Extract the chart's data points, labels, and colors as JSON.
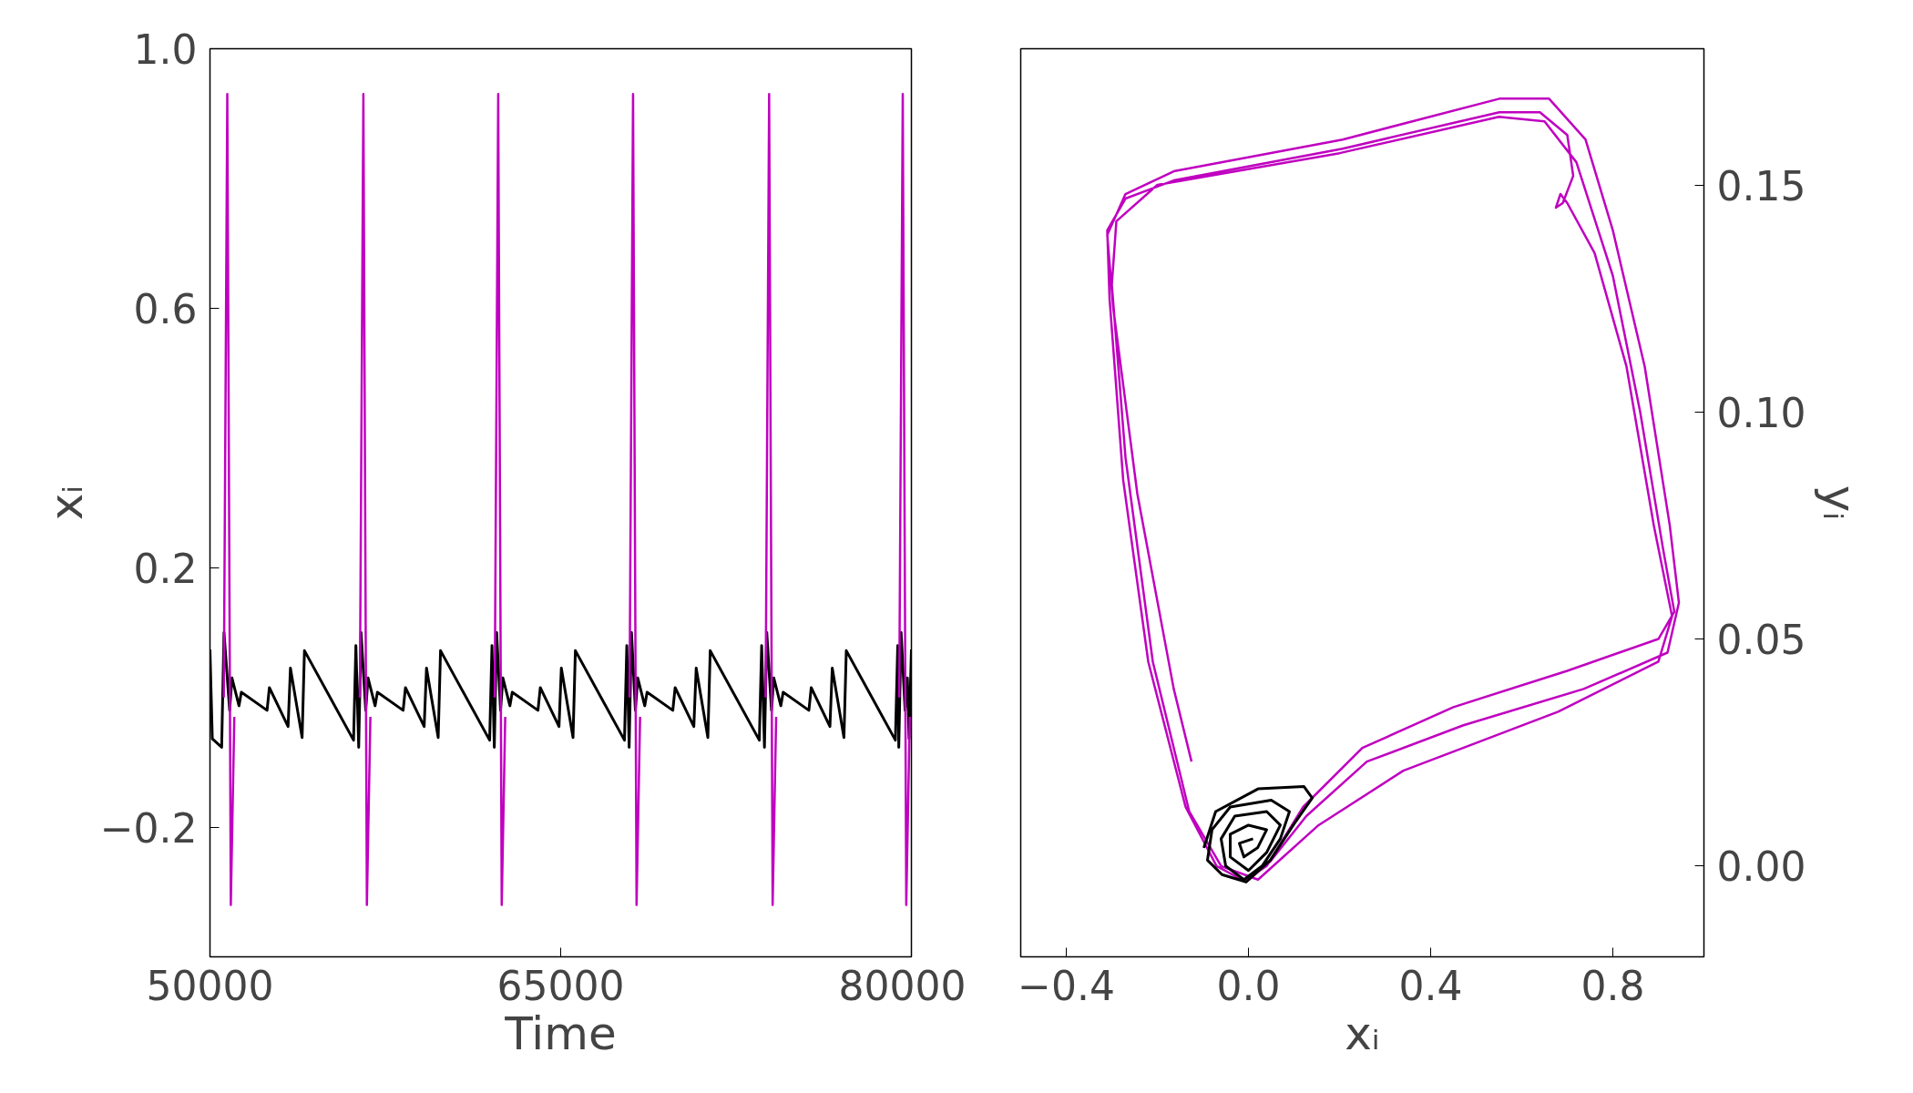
{
  "chart_data": [
    {
      "type": "line",
      "xlabel": "Time",
      "ylabel": "xᵢ",
      "xlim": [
        50000,
        80000
      ],
      "ylim": [
        -0.4,
        1.0
      ],
      "xticks": [
        50000,
        65000,
        80000
      ],
      "yticks": [
        {
          "value": -0.2,
          "label": "−0.2"
        },
        {
          "value": 0.2,
          "label": "0.2"
        },
        {
          "value": 0.6,
          "label": "0.6"
        },
        {
          "value": 1.0,
          "label": "1.0"
        }
      ],
      "grid": false,
      "marker": "none",
      "line_style": "solid",
      "series": [
        {
          "color": "#000000",
          "x": [
            50000,
            50100,
            50500,
            50600,
            50841,
            50941,
            51241,
            51341,
            52441,
            52541,
            53341,
            53441,
            53941,
            54041,
            56141,
            56241,
            56361,
            56461,
            56661,
            56761,
            57061,
            57161,
            58261,
            58361,
            59161,
            59261,
            59761,
            59861,
            61961,
            62061,
            62161,
            62261,
            62428,
            62528,
            62828,
            62928,
            64028,
            64128,
            64928,
            65028,
            65528,
            65628,
            67728,
            67828,
            67928,
            68028,
            68195,
            68295,
            68595,
            68695,
            69795,
            69895,
            70695,
            70795,
            71295,
            71395,
            73495,
            73595,
            73715,
            73815,
            74015,
            74115,
            74415,
            74515,
            75615,
            75715,
            76515,
            76615,
            77115,
            77215,
            79315,
            79415,
            79460,
            79560,
            79730,
            79830,
            79900,
            80000
          ],
          "values": [
            0.074,
            -0.064,
            -0.077,
            0.1,
            -0.02,
            0.03,
            -0.013,
            0.008,
            -0.02,
            0.015,
            -0.045,
            0.045,
            -0.062,
            0.072,
            -0.066,
            0.08,
            -0.077,
            0.1,
            -0.02,
            0.03,
            -0.013,
            0.008,
            -0.02,
            0.015,
            -0.045,
            0.045,
            -0.062,
            0.072,
            -0.066,
            0.08,
            -0.077,
            0.1,
            -0.02,
            0.03,
            -0.013,
            0.008,
            -0.02,
            0.015,
            -0.045,
            0.045,
            -0.062,
            0.072,
            -0.066,
            0.08,
            -0.077,
            0.1,
            -0.02,
            0.03,
            -0.013,
            0.008,
            -0.02,
            0.015,
            -0.045,
            0.045,
            -0.062,
            0.072,
            -0.066,
            0.08,
            -0.077,
            0.1,
            -0.02,
            0.03,
            -0.013,
            0.008,
            -0.02,
            0.015,
            -0.045,
            0.045,
            -0.062,
            0.072,
            -0.066,
            0.08,
            -0.077,
            0.1,
            -0.02,
            0.03,
            -0.064,
            0.074
          ]
        },
        {
          "color": "#c000c0",
          "x": [
            50591,
            50741,
            50891,
            51041,
            51042,
            56411,
            56561,
            56711,
            56861,
            56862,
            62178,
            62328,
            62478,
            62628,
            62629,
            67945,
            68095,
            68245,
            68395,
            68396,
            73765,
            73915,
            74065,
            74215,
            74216,
            79480,
            79630,
            79780,
            79930
          ],
          "values": [
            0.0,
            0.93,
            -0.32,
            -0.03,
            null,
            0.0,
            0.93,
            -0.32,
            -0.03,
            null,
            0.0,
            0.93,
            -0.32,
            -0.03,
            null,
            0.0,
            0.93,
            -0.32,
            -0.03,
            null,
            0.0,
            0.93,
            -0.32,
            -0.03,
            null,
            0.0,
            0.93,
            -0.32,
            -0.03
          ]
        }
      ]
    },
    {
      "type": "line",
      "xlabel": "xᵢ",
      "y2label": "yᵢ",
      "xlim": [
        -0.5,
        1.0
      ],
      "y2lim": [
        -0.02,
        0.18
      ],
      "xticks": [
        {
          "value": -0.4,
          "label": "−0.4"
        },
        {
          "value": 0.0,
          "label": "0.0"
        },
        {
          "value": 0.4,
          "label": "0.4"
        },
        {
          "value": 0.8,
          "label": "0.8"
        }
      ],
      "y2ticks": [
        {
          "value": 0.0,
          "label": "0.00"
        },
        {
          "value": 0.05,
          "label": "0.05"
        },
        {
          "value": 0.1,
          "label": "0.10"
        },
        {
          "value": 0.15,
          "label": "0.15"
        }
      ],
      "grid": false,
      "marker": "none",
      "line_style": "solid",
      "series": [
        {
          "color": "#c000c0",
          "axis": "y2",
          "x": [
            -0.125,
            -0.164,
            -0.244,
            -0.297,
            -0.31,
            -0.27,
            -0.164,
            0.207,
            0.551,
            0.66,
            0.74,
            0.8,
            0.87,
            0.925,
            0.945,
            0.92,
            0.736,
            0.472,
            0.26,
            0.127,
            0.048,
            -0.005,
            -0.07,
            -0.138,
            -0.22,
            -0.275,
            -0.305,
            -0.31,
            -0.27,
            -0.164,
            0.207,
            0.551,
            0.64,
            0.7,
            0.713,
            0.69,
            0.675,
            0.685,
            0.7,
            0.76,
            0.83,
            0.89,
            0.93,
            0.9,
            0.68,
            0.34,
            0.154,
            0.021,
            -0.06,
            -0.13,
            -0.21,
            -0.27,
            -0.3,
            -0.29,
            -0.2,
            0.2,
            0.55,
            0.65,
            0.72,
            0.8,
            0.86,
            0.91,
            0.935,
            0.9,
            0.7,
            0.45,
            0.25,
            0.12,
            0.04,
            -0.005
          ],
          "values": [
            0.023,
            0.039,
            0.082,
            0.123,
            0.139,
            0.148,
            0.153,
            0.16,
            0.169,
            0.169,
            0.16,
            0.14,
            0.11,
            0.075,
            0.058,
            0.047,
            0.039,
            0.031,
            0.023,
            0.011,
            0.001,
            -0.0035,
            0.0,
            0.013,
            0.045,
            0.085,
            0.125,
            0.14,
            0.147,
            0.151,
            0.158,
            0.166,
            0.166,
            0.161,
            0.152,
            0.146,
            0.145,
            0.148,
            0.146,
            0.135,
            0.11,
            0.075,
            0.055,
            0.045,
            0.034,
            0.021,
            0.009,
            -0.003,
            0.0,
            0.012,
            0.045,
            0.09,
            0.128,
            0.142,
            0.15,
            0.157,
            0.165,
            0.164,
            0.155,
            0.13,
            0.1,
            0.07,
            0.056,
            0.05,
            0.043,
            0.035,
            0.026,
            0.013,
            0.0,
            -0.003
          ]
        },
        {
          "color": "#000000",
          "axis": "y2",
          "x": [
            -0.098,
            -0.072,
            0.021,
            0.122,
            0.14,
            0.101,
            0.048,
            -0.005,
            -0.058,
            -0.09,
            -0.08,
            -0.04,
            0.05,
            0.09,
            0.07,
            0.03,
            -0.01,
            -0.05,
            -0.06,
            -0.03,
            0.04,
            0.07,
            0.04,
            0.0,
            -0.04,
            -0.04,
            0.0,
            0.04,
            0.02,
            -0.01,
            -0.02,
            0.01
          ],
          "values": [
            0.004,
            0.012,
            0.017,
            0.0175,
            0.015,
            0.0094,
            0.0013,
            -0.0035,
            -0.0019,
            0.0013,
            0.008,
            0.013,
            0.0145,
            0.012,
            0.006,
            0.0,
            -0.003,
            0.0,
            0.006,
            0.011,
            0.012,
            0.009,
            0.003,
            -0.001,
            0.002,
            0.007,
            0.009,
            0.008,
            0.004,
            0.002,
            0.005,
            0.006
          ]
        }
      ]
    }
  ]
}
